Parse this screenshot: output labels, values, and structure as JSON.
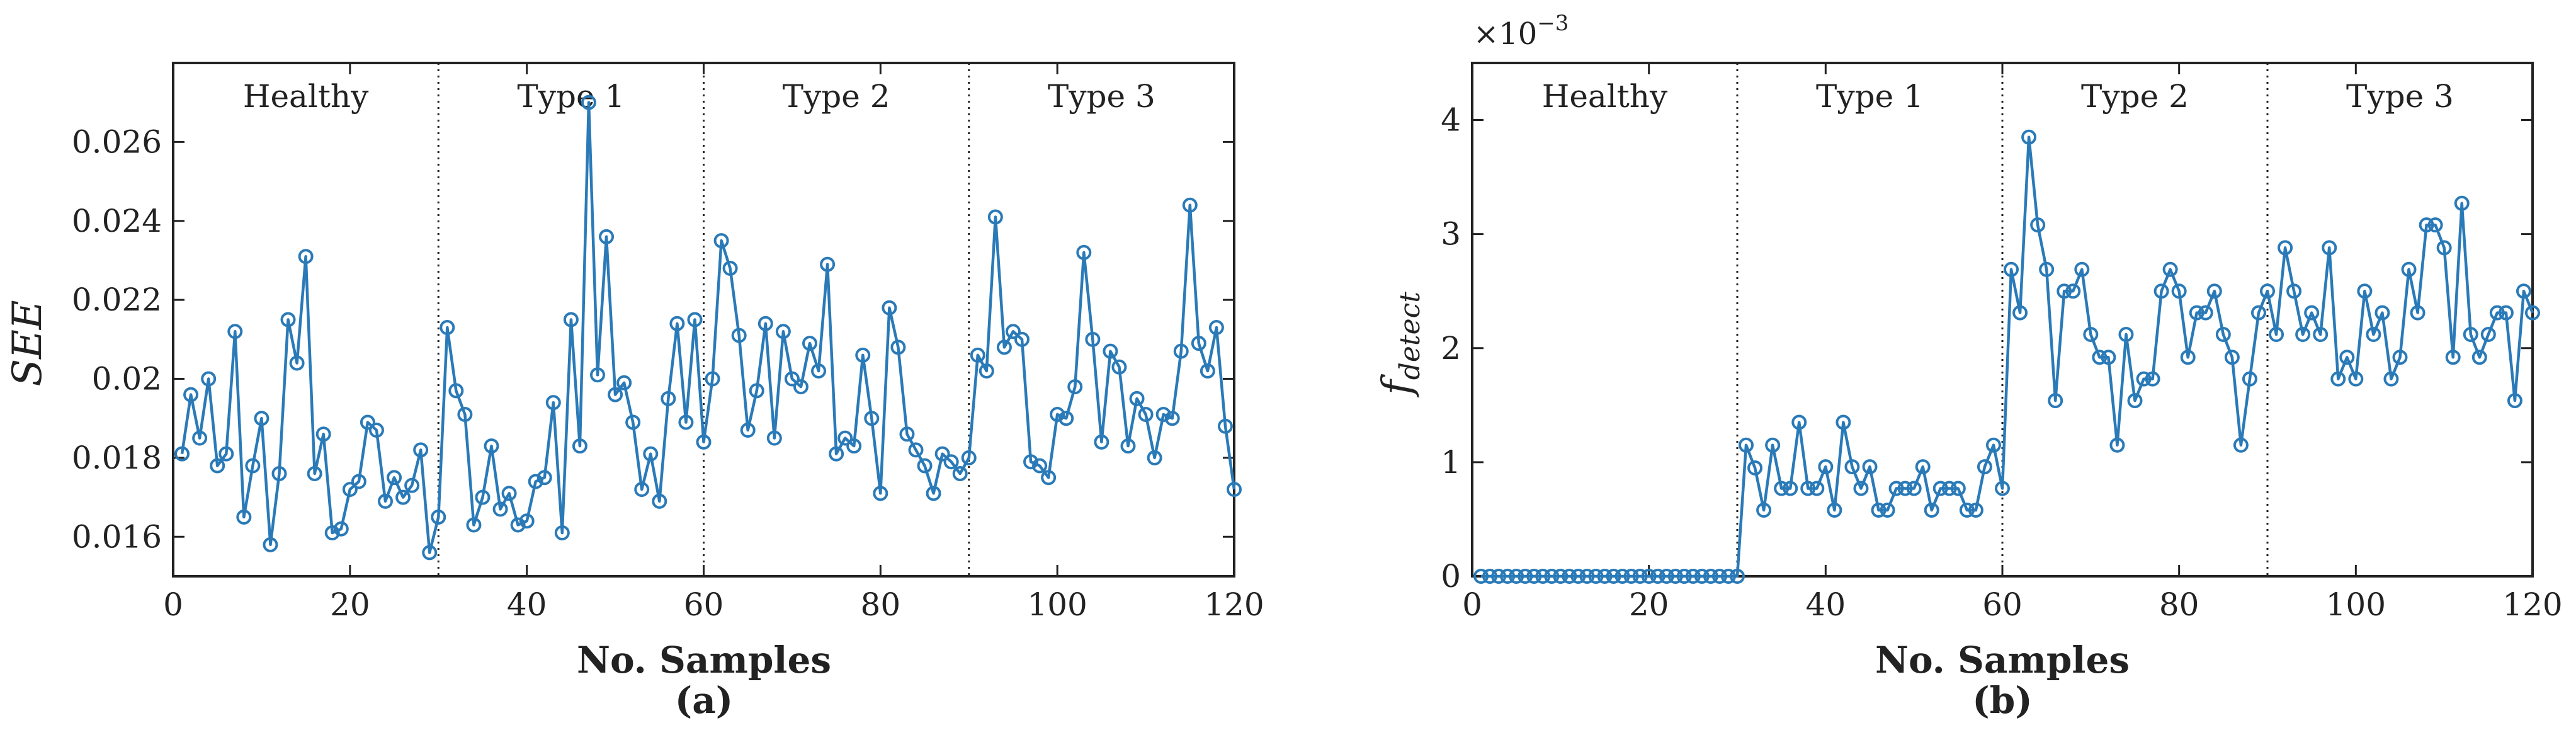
{
  "chart_data": [
    {
      "type": "line",
      "caption": "(a)",
      "xlabel": "No. Samples",
      "ylabel": "SEE",
      "xlim": [
        0,
        120
      ],
      "ylim": [
        0.015,
        0.028
      ],
      "xticks": [
        0,
        20,
        40,
        60,
        80,
        100,
        120
      ],
      "yticks": [
        0.016,
        0.018,
        0.02,
        0.022,
        0.024,
        0.026
      ],
      "ytick_labels": [
        "0.016",
        "0.018",
        "0.02",
        "0.022",
        "0.024",
        "0.026"
      ],
      "xtick_labels": [
        "0",
        "20",
        "40",
        "60",
        "80",
        "100",
        "120"
      ],
      "grid": false,
      "color": "#2a7ab8",
      "dividers": [
        30,
        60,
        90
      ],
      "regions": [
        {
          "label": "Healthy",
          "x": 15
        },
        {
          "label": "Type 1",
          "x": 45
        },
        {
          "label": "Type 2",
          "x": 75
        },
        {
          "label": "Type 3",
          "x": 105
        }
      ],
      "series": [
        {
          "name": "SEE",
          "x": [
            1,
            2,
            3,
            4,
            5,
            6,
            7,
            8,
            9,
            10,
            11,
            12,
            13,
            14,
            15,
            16,
            17,
            18,
            19,
            20,
            21,
            22,
            23,
            24,
            25,
            26,
            27,
            28,
            29,
            30,
            31,
            32,
            33,
            34,
            35,
            36,
            37,
            38,
            39,
            40,
            41,
            42,
            43,
            44,
            45,
            46,
            47,
            48,
            49,
            50,
            51,
            52,
            53,
            54,
            55,
            56,
            57,
            58,
            59,
            60,
            61,
            62,
            63,
            64,
            65,
            66,
            67,
            68,
            69,
            70,
            71,
            72,
            73,
            74,
            75,
            76,
            77,
            78,
            79,
            80,
            81,
            82,
            83,
            84,
            85,
            86,
            87,
            88,
            89,
            90,
            91,
            92,
            93,
            94,
            95,
            96,
            97,
            98,
            99,
            100,
            101,
            102,
            103,
            104,
            105,
            106,
            107,
            108,
            109,
            110,
            111,
            112,
            113,
            114,
            115,
            116,
            117,
            118,
            119,
            120
          ],
          "values": [
            0.0181,
            0.0196,
            0.0185,
            0.02,
            0.0178,
            0.0181,
            0.0212,
            0.0165,
            0.0178,
            0.019,
            0.0158,
            0.0176,
            0.0215,
            0.0204,
            0.0231,
            0.0176,
            0.0186,
            0.0161,
            0.0162,
            0.0172,
            0.0174,
            0.0189,
            0.0187,
            0.0169,
            0.0175,
            0.017,
            0.0173,
            0.0182,
            0.0156,
            0.0165,
            0.0213,
            0.0197,
            0.0191,
            0.0163,
            0.017,
            0.0183,
            0.0167,
            0.0171,
            0.0163,
            0.0164,
            0.0174,
            0.0175,
            0.0194,
            0.0161,
            0.0215,
            0.0183,
            0.027,
            0.0201,
            0.0236,
            0.0196,
            0.0199,
            0.0189,
            0.0172,
            0.0181,
            0.0169,
            0.0195,
            0.0214,
            0.0189,
            0.0215,
            0.0184,
            0.02,
            0.0235,
            0.0228,
            0.0211,
            0.0187,
            0.0197,
            0.0214,
            0.0185,
            0.0212,
            0.02,
            0.0198,
            0.0209,
            0.0202,
            0.0229,
            0.0181,
            0.0185,
            0.0183,
            0.0206,
            0.019,
            0.0171,
            0.0218,
            0.0208,
            0.0186,
            0.0182,
            0.0178,
            0.0171,
            0.0181,
            0.0179,
            0.0176,
            0.018,
            0.0206,
            0.0202,
            0.0241,
            0.0208,
            0.0212,
            0.021,
            0.0179,
            0.0178,
            0.0175,
            0.0191,
            0.019,
            0.0198,
            0.0232,
            0.021,
            0.0184,
            0.0207,
            0.0203,
            0.0183,
            0.0195,
            0.0191,
            0.018,
            0.0191,
            0.019,
            0.0207,
            0.0244,
            0.0209,
            0.0202,
            0.0213,
            0.0188,
            0.0172
          ]
        }
      ]
    },
    {
      "type": "line",
      "caption": "(b)",
      "xlabel": "No. Samples",
      "ylabel": "f",
      "ylabel_subscript": "detect",
      "exponent_label": "×10",
      "exponent_power": "−3",
      "xlim": [
        0,
        120
      ],
      "ylim": [
        0,
        4.5
      ],
      "xticks": [
        0,
        20,
        40,
        60,
        80,
        100,
        120
      ],
      "yticks": [
        0,
        1,
        2,
        3,
        4
      ],
      "ytick_labels": [
        "0",
        "1",
        "2",
        "3",
        "4"
      ],
      "xtick_labels": [
        "0",
        "20",
        "40",
        "60",
        "80",
        "100",
        "120"
      ],
      "grid": false,
      "color": "#2a7ab8",
      "dividers": [
        30,
        60,
        90
      ],
      "regions": [
        {
          "label": "Healthy",
          "x": 15
        },
        {
          "label": "Type 1",
          "x": 45
        },
        {
          "label": "Type 2",
          "x": 75
        },
        {
          "label": "Type 3",
          "x": 105
        }
      ],
      "series": [
        {
          "name": "f_detect (×10^-3)",
          "x": [
            1,
            2,
            3,
            4,
            5,
            6,
            7,
            8,
            9,
            10,
            11,
            12,
            13,
            14,
            15,
            16,
            17,
            18,
            19,
            20,
            21,
            22,
            23,
            24,
            25,
            26,
            27,
            28,
            29,
            30,
            31,
            32,
            33,
            34,
            35,
            36,
            37,
            38,
            39,
            40,
            41,
            42,
            43,
            44,
            45,
            46,
            47,
            48,
            49,
            50,
            51,
            52,
            53,
            54,
            55,
            56,
            57,
            58,
            59,
            60,
            61,
            62,
            63,
            64,
            65,
            66,
            67,
            68,
            69,
            70,
            71,
            72,
            73,
            74,
            75,
            76,
            77,
            78,
            79,
            80,
            81,
            82,
            83,
            84,
            85,
            86,
            87,
            88,
            89,
            90,
            91,
            92,
            93,
            94,
            95,
            96,
            97,
            98,
            99,
            100,
            101,
            102,
            103,
            104,
            105,
            106,
            107,
            108,
            109,
            110,
            111,
            112,
            113,
            114,
            115,
            116,
            117,
            118,
            119,
            120
          ],
          "values": [
            0,
            0,
            0,
            0,
            0,
            0,
            0,
            0,
            0,
            0,
            0,
            0,
            0,
            0,
            0,
            0,
            0,
            0,
            0,
            0,
            0,
            0,
            0,
            0,
            0,
            0,
            0,
            0,
            0,
            0,
            1.15,
            0.95,
            0.58,
            1.15,
            0.77,
            0.77,
            1.35,
            0.77,
            0.77,
            0.96,
            0.58,
            1.35,
            0.96,
            0.77,
            0.96,
            0.58,
            0.58,
            0.77,
            0.77,
            0.77,
            0.96,
            0.58,
            0.77,
            0.77,
            0.77,
            0.58,
            0.58,
            0.96,
            1.15,
            0.77,
            2.69,
            2.31,
            3.85,
            3.08,
            2.69,
            1.54,
            2.5,
            2.5,
            2.69,
            2.12,
            1.92,
            1.92,
            1.15,
            2.12,
            1.54,
            1.73,
            1.73,
            2.5,
            2.69,
            2.5,
            1.92,
            2.31,
            2.31,
            2.5,
            2.12,
            1.92,
            1.15,
            1.73,
            2.31,
            2.5,
            2.12,
            2.88,
            2.5,
            2.12,
            2.31,
            2.12,
            2.88,
            1.73,
            1.92,
            1.73,
            2.5,
            2.12,
            2.31,
            1.73,
            1.92,
            2.69,
            2.31,
            3.08,
            3.08,
            2.88,
            1.92,
            3.27,
            2.12,
            1.92,
            2.12,
            2.31,
            2.31,
            1.54,
            2.5,
            2.31
          ]
        }
      ]
    }
  ]
}
